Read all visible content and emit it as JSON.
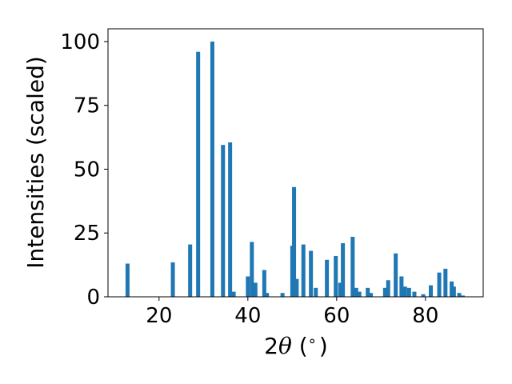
{
  "chart_data": {
    "type": "bar",
    "xlabel_parts": {
      "prefix": "2",
      "symbol": "θ",
      "suffix": " (",
      "deg": "∘",
      "close": ")"
    },
    "ylabel": "Intensities (scaled)",
    "xlim": [
      8.5,
      93
    ],
    "ylim": [
      0,
      105
    ],
    "xticks": [
      20,
      40,
      60,
      80
    ],
    "yticks": [
      0,
      25,
      50,
      75,
      100
    ],
    "bar_color": "#1f77b4",
    "bar_width": 0.9,
    "grid": false,
    "x": [
      12.9,
      23.1,
      27.0,
      28.8,
      32.0,
      34.4,
      36.0,
      36.8,
      40.0,
      40.9,
      41.7,
      43.7,
      44.3,
      47.8,
      50.0,
      50.4,
      51.0,
      52.5,
      54.2,
      55.3,
      57.8,
      59.8,
      60.8,
      61.4,
      63.6,
      64.4,
      65.1,
      67.0,
      67.7,
      70.9,
      71.6,
      73.3,
      74.6,
      75.4,
      76.3,
      77.5,
      79.5,
      81.2,
      83.1,
      84.5,
      85.9,
      86.4,
      87.6,
      88.4
    ],
    "values": [
      13,
      13.5,
      20.5,
      96,
      100,
      59.5,
      60.5,
      2,
      8,
      21.5,
      5.5,
      10.5,
      1.5,
      1.5,
      20,
      43,
      7,
      20.5,
      18,
      3.5,
      14.5,
      16,
      5.5,
      21,
      23.5,
      3.5,
      2,
      3.5,
      1.5,
      3.5,
      6.5,
      17,
      8,
      4,
      3.5,
      2,
      1,
      4.5,
      9.5,
      11,
      6,
      4,
      1.5,
      0.5
    ]
  }
}
